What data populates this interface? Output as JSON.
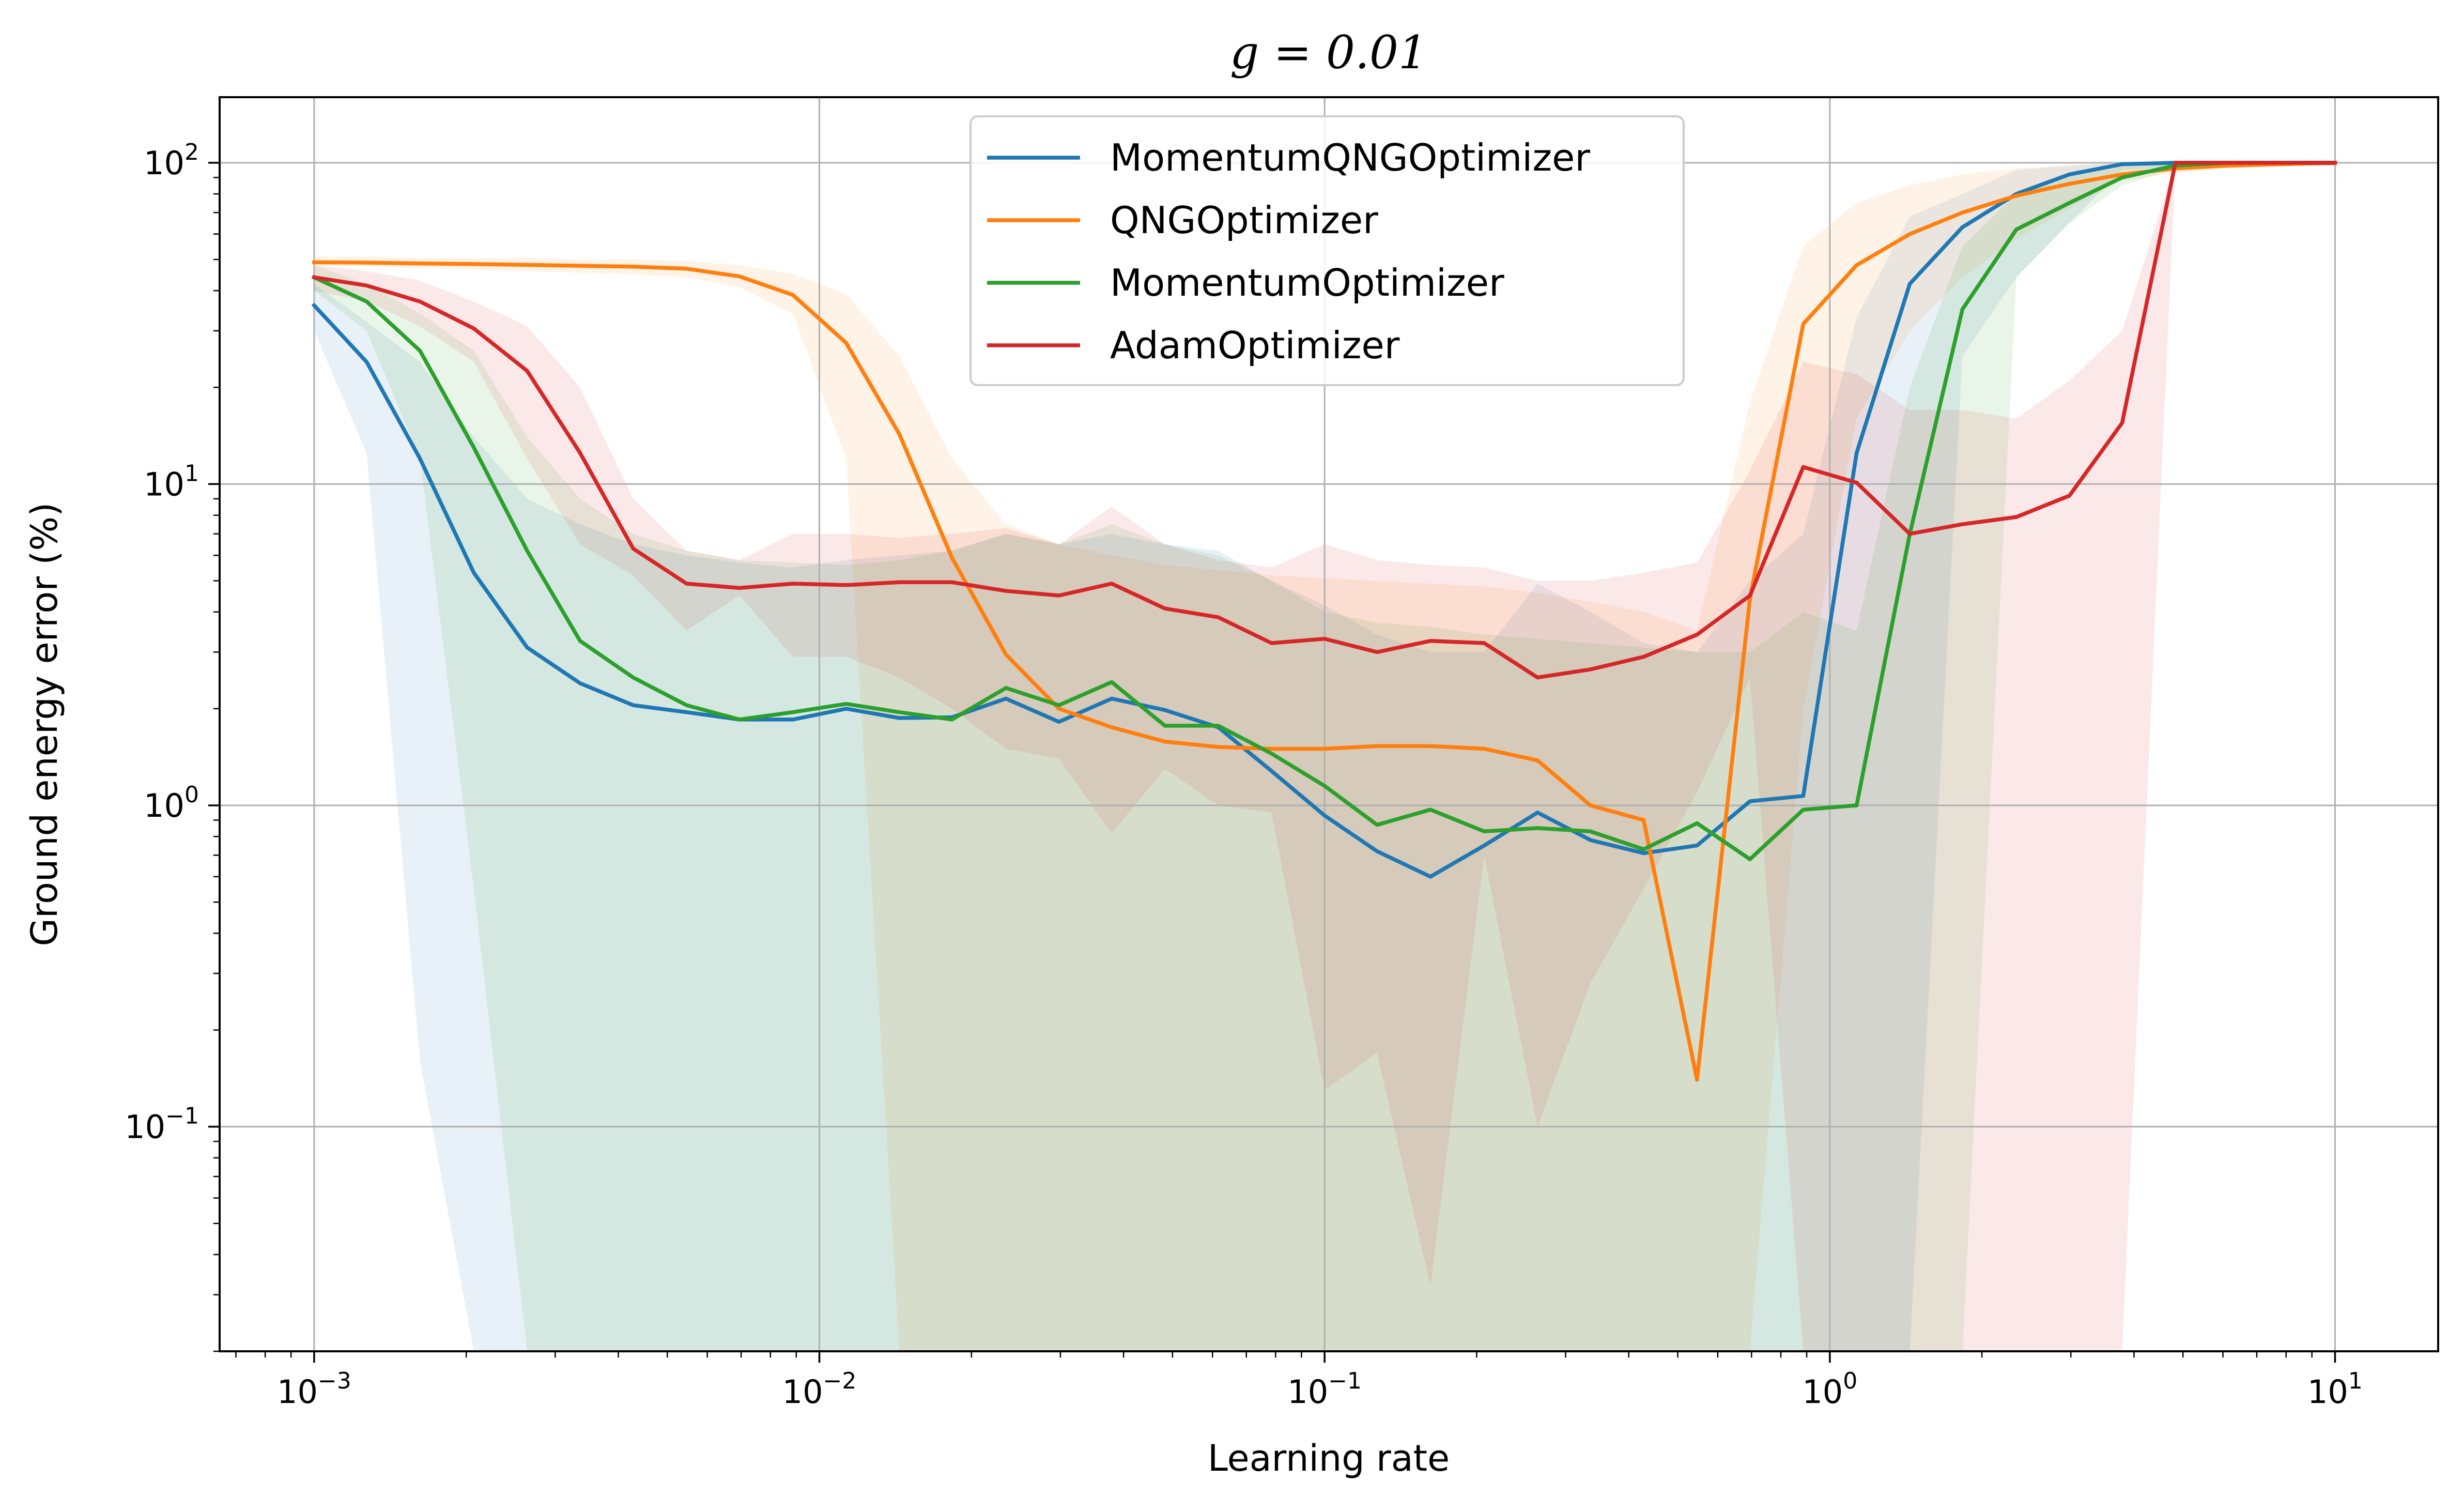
{
  "chart_data": {
    "type": "line",
    "title": "g = 0.01",
    "xlabel": "Learning rate",
    "ylabel": "Ground energy error (%)",
    "xscale": "log",
    "yscale": "log",
    "xlim": [
      0.00065,
      16
    ],
    "ylim": [
      0.02,
      160
    ],
    "xticks": [
      {
        "value": 0.001,
        "base": "10",
        "exp": "−3"
      },
      {
        "value": 0.01,
        "base": "10",
        "exp": "−2"
      },
      {
        "value": 0.1,
        "base": "10",
        "exp": "−1"
      },
      {
        "value": 1,
        "base": "10",
        "exp": "0"
      },
      {
        "value": 10,
        "base": "10",
        "exp": "1"
      }
    ],
    "yticks": [
      {
        "value": 0.1,
        "base": "10",
        "exp": "−1"
      },
      {
        "value": 1,
        "base": "10",
        "exp": "0"
      },
      {
        "value": 10,
        "base": "10",
        "exp": "1"
      },
      {
        "value": 100,
        "base": "10",
        "exp": "2"
      }
    ],
    "grid": true,
    "legend_position": "top-center",
    "x": [
      0.001,
      0.00127,
      0.00162,
      0.00207,
      0.00264,
      0.00336,
      0.00428,
      0.00546,
      0.00695,
      0.00886,
      0.0113,
      0.0144,
      0.0183,
      0.0234,
      0.0298,
      0.0379,
      0.0483,
      0.0616,
      0.0785,
      0.1,
      0.127,
      0.162,
      0.207,
      0.264,
      0.336,
      0.428,
      0.546,
      0.695,
      0.886,
      1.13,
      1.44,
      1.83,
      2.34,
      2.98,
      3.79,
      4.83,
      6.16,
      7.85,
      10
    ],
    "series": [
      {
        "name": "MomentumQNGOptimizer",
        "color": "#1f77b4",
        "values": [
          36,
          24,
          12,
          5.3,
          3.1,
          2.4,
          2.05,
          1.95,
          1.85,
          1.85,
          2.0,
          1.87,
          1.88,
          2.15,
          1.82,
          2.15,
          1.98,
          1.75,
          1.28,
          0.93,
          0.72,
          0.6,
          0.75,
          0.95,
          0.78,
          0.71,
          0.75,
          1.03,
          1.07,
          12.5,
          42,
          63,
          80,
          92,
          99,
          100,
          100,
          100,
          100
        ],
        "band_low": [
          30,
          12.5,
          0.16,
          0.02,
          0.02,
          0.02,
          0.02,
          0.02,
          0.02,
          0.02,
          0.02,
          0.02,
          0.02,
          0.02,
          0.02,
          0.02,
          0.02,
          0.02,
          0.02,
          0.02,
          0.02,
          0.02,
          0.02,
          0.02,
          0.02,
          0.02,
          0.02,
          0.02,
          0.02,
          0.02,
          0.02,
          25,
          44,
          65,
          95,
          97,
          98,
          98,
          98
        ],
        "band_high": [
          42,
          32,
          24,
          14,
          9,
          7.5,
          6.5,
          6.0,
          5.7,
          5.5,
          5.8,
          6.0,
          6.2,
          7.0,
          6.5,
          7.0,
          6.5,
          6.2,
          5.0,
          4.2,
          3.4,
          3.0,
          3.0,
          4.9,
          4.0,
          3.2,
          3.0,
          5.0,
          7.0,
          33,
          68,
          80,
          95,
          98,
          100,
          100,
          100,
          100,
          100
        ]
      },
      {
        "name": "QNGOptimizer",
        "color": "#ff7f0e",
        "values": [
          49,
          48.9,
          48.6,
          48.4,
          48.1,
          47.8,
          47.5,
          46.8,
          44.3,
          38.8,
          27.5,
          14.3,
          5.9,
          2.95,
          2.0,
          1.75,
          1.58,
          1.52,
          1.5,
          1.5,
          1.53,
          1.53,
          1.5,
          1.38,
          1.0,
          0.9,
          0.14,
          4.4,
          31.5,
          48,
          60,
          70,
          79,
          86,
          92,
          96,
          98,
          99,
          100
        ],
        "band_low": [
          48,
          47.5,
          47,
          46.5,
          46,
          45.5,
          45,
          44,
          41,
          34,
          12,
          0.02,
          0.02,
          0.02,
          0.02,
          0.02,
          0.02,
          0.02,
          0.02,
          0.02,
          0.02,
          0.02,
          0.02,
          0.02,
          0.02,
          0.02,
          0.02,
          0.02,
          2,
          16,
          30,
          44,
          58,
          72,
          88,
          93,
          96,
          98,
          98
        ],
        "band_high": [
          51,
          51,
          50.5,
          50.5,
          50.5,
          50,
          50,
          49.5,
          48,
          45,
          39,
          25,
          12,
          7.5,
          6.5,
          6.0,
          5.6,
          5.4,
          5.2,
          5.1,
          5.0,
          4.9,
          4.8,
          4.6,
          4.3,
          4.0,
          3.5,
          18,
          55,
          75,
          85,
          92,
          96,
          98,
          100,
          100,
          100,
          100,
          100
        ]
      },
      {
        "name": "MomentumOptimizer",
        "color": "#2ca02c",
        "values": [
          44,
          37,
          26,
          13,
          6.2,
          3.25,
          2.5,
          2.05,
          1.85,
          1.95,
          2.07,
          1.95,
          1.85,
          2.32,
          2.05,
          2.42,
          1.77,
          1.77,
          1.45,
          1.15,
          0.87,
          0.97,
          0.83,
          0.85,
          0.83,
          0.73,
          0.88,
          0.68,
          0.97,
          1.0,
          7.0,
          35,
          62,
          75,
          90,
          98,
          100,
          100,
          100
        ],
        "band_low": [
          40,
          30,
          12,
          0.55,
          0.02,
          0.02,
          0.02,
          0.02,
          0.02,
          0.02,
          0.02,
          0.02,
          0.02,
          0.02,
          0.02,
          0.02,
          0.02,
          0.02,
          0.02,
          0.02,
          0.02,
          0.02,
          0.02,
          0.02,
          0.02,
          0.02,
          0.02,
          0.02,
          0.02,
          0.02,
          0.02,
          0.02,
          44,
          65,
          85,
          96,
          98,
          98,
          98
        ],
        "band_high": [
          48,
          42,
          34,
          26,
          14,
          9,
          7,
          6.2,
          5.8,
          5.7,
          5.6,
          5.8,
          6.2,
          7.0,
          6.5,
          7.5,
          6.5,
          6.0,
          5.0,
          4.0,
          3.7,
          3.6,
          3.4,
          3.3,
          3.2,
          3.1,
          3.0,
          3.0,
          4.0,
          3.5,
          20,
          55,
          80,
          92,
          98,
          100,
          100,
          100,
          100
        ]
      },
      {
        "name": "AdamOptimizer",
        "color": "#d62728",
        "values": [
          44,
          41.5,
          37,
          30.5,
          22.5,
          12.5,
          6.3,
          4.9,
          4.75,
          4.9,
          4.85,
          4.95,
          4.95,
          4.65,
          4.5,
          4.9,
          4.1,
          3.85,
          3.2,
          3.3,
          3.0,
          3.25,
          3.2,
          2.5,
          2.65,
          2.9,
          3.4,
          4.5,
          11.3,
          10.1,
          7.0,
          7.5,
          7.9,
          9.2,
          15.5,
          100,
          100,
          100,
          100
        ],
        "band_low": [
          40,
          37,
          31,
          24,
          12,
          6.5,
          5.2,
          3.5,
          4.5,
          2.9,
          2.9,
          2.5,
          2.0,
          1.5,
          1.4,
          0.82,
          1.3,
          1.0,
          0.95,
          0.13,
          0.17,
          0.032,
          0.7,
          0.1,
          0.28,
          0.55,
          1.1,
          2.5,
          0.02,
          0.02,
          0.02,
          0.02,
          0.02,
          0.02,
          0.02,
          98,
          98,
          98,
          98
        ],
        "band_high": [
          48,
          46,
          43,
          37,
          31,
          20,
          9,
          6.2,
          5.8,
          7.0,
          7.0,
          6.8,
          7.0,
          7.3,
          6.5,
          8.5,
          6.5,
          5.8,
          5.5,
          6.5,
          5.8,
          5.6,
          5.5,
          5.0,
          5.0,
          5.3,
          5.7,
          11,
          24,
          22,
          17,
          17,
          16,
          21,
          30,
          100,
          100,
          100,
          100
        ]
      }
    ]
  }
}
